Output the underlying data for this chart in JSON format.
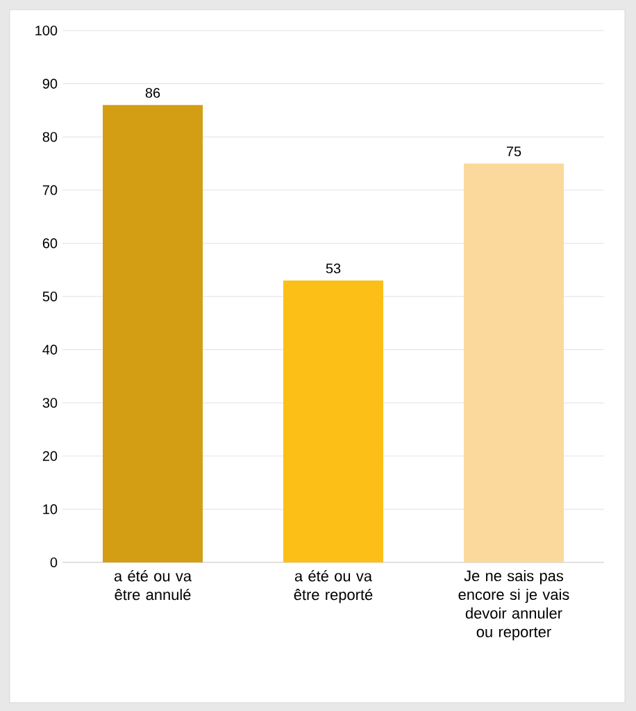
{
  "chart_data": {
    "type": "bar",
    "categories": [
      "a été ou va être annulé",
      "a été ou va être reporté",
      "Je ne sais pas encore si je vais devoir annuler ou reporter"
    ],
    "values": [
      86,
      53,
      75
    ],
    "colors": [
      "#d39e14",
      "#fbbf17",
      "#fbd89c"
    ],
    "ylim": [
      0,
      100
    ],
    "yticks": [
      0,
      10,
      20,
      30,
      40,
      50,
      60,
      70,
      80,
      90,
      100
    ],
    "grid": "y",
    "data_labels": true
  }
}
